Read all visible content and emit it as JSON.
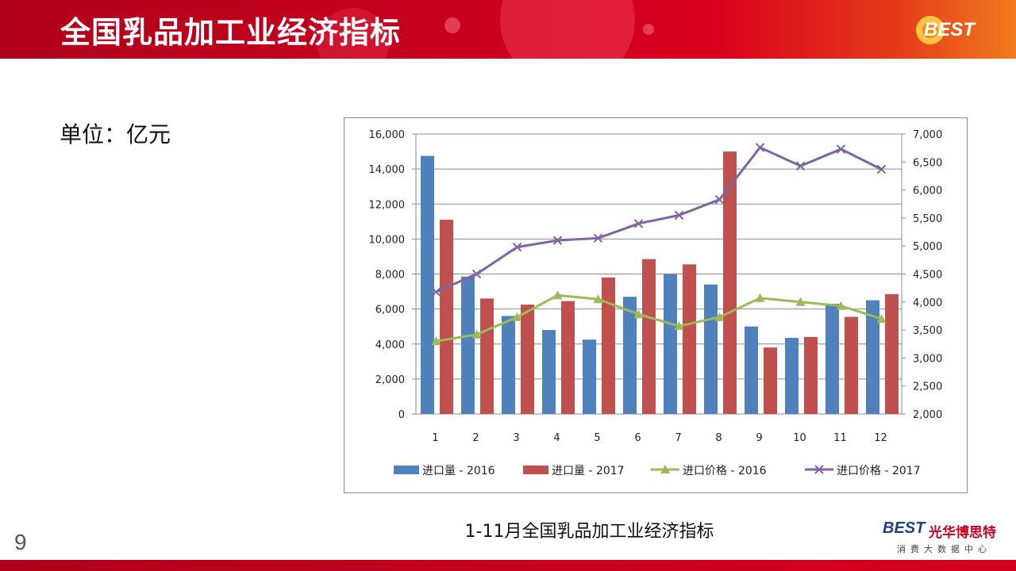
{
  "header": {
    "title": "全国乳品加工业经济指标",
    "logo_text": "BEST"
  },
  "unit_label": "单位：亿元",
  "caption": "1-11月全国乳品加工业经济指标",
  "page_number": "9",
  "brand": {
    "logo_mark": "BEST",
    "name": "光华博思特",
    "subtitle": "消费大数据中心"
  },
  "colors": {
    "bar2016": "#4f81bd",
    "bar2017": "#c0504d",
    "line2016": "#9bbb59",
    "line2017": "#8064a2"
  },
  "chart_data": {
    "type": "bar",
    "categories": [
      "1",
      "2",
      "3",
      "4",
      "5",
      "6",
      "7",
      "8",
      "9",
      "10",
      "11",
      "12"
    ],
    "left_axis": {
      "ylim": [
        0,
        16000
      ],
      "ticks": [
        "0",
        "2,000",
        "4,000",
        "6,000",
        "8,000",
        "10,000",
        "12,000",
        "14,000",
        "16,000"
      ]
    },
    "right_axis": {
      "ylim": [
        2000,
        7000
      ],
      "ticks": [
        "2,000",
        "2,500",
        "3,000",
        "3,500",
        "4,000",
        "4,500",
        "5,000",
        "5,500",
        "6,000",
        "6,500",
        "7,000"
      ]
    },
    "grid": true,
    "legend_position": "bottom",
    "series": [
      {
        "name": "进口量 - 2016",
        "type": "bar",
        "axis": "left",
        "values": [
          14750,
          7850,
          5600,
          4800,
          4250,
          6700,
          8000,
          7400,
          5000,
          4350,
          6300,
          6500
        ]
      },
      {
        "name": "进口量 - 2017",
        "type": "bar",
        "axis": "left",
        "values": [
          11100,
          6600,
          6250,
          6450,
          7800,
          8850,
          8550,
          15000,
          3800,
          4400,
          5550,
          6850
        ]
      },
      {
        "name": "进口价格 - 2016",
        "type": "line",
        "axis": "right",
        "marker": "triangle",
        "values": [
          3300,
          3420,
          3730,
          4120,
          4050,
          3780,
          3570,
          3730,
          4070,
          4000,
          3930,
          3700
        ]
      },
      {
        "name": "进口价格 - 2017",
        "type": "line",
        "axis": "right",
        "marker": "x",
        "values": [
          4180,
          4500,
          4980,
          5100,
          5140,
          5400,
          5550,
          5830,
          6760,
          6430,
          6730,
          6370
        ]
      }
    ]
  }
}
